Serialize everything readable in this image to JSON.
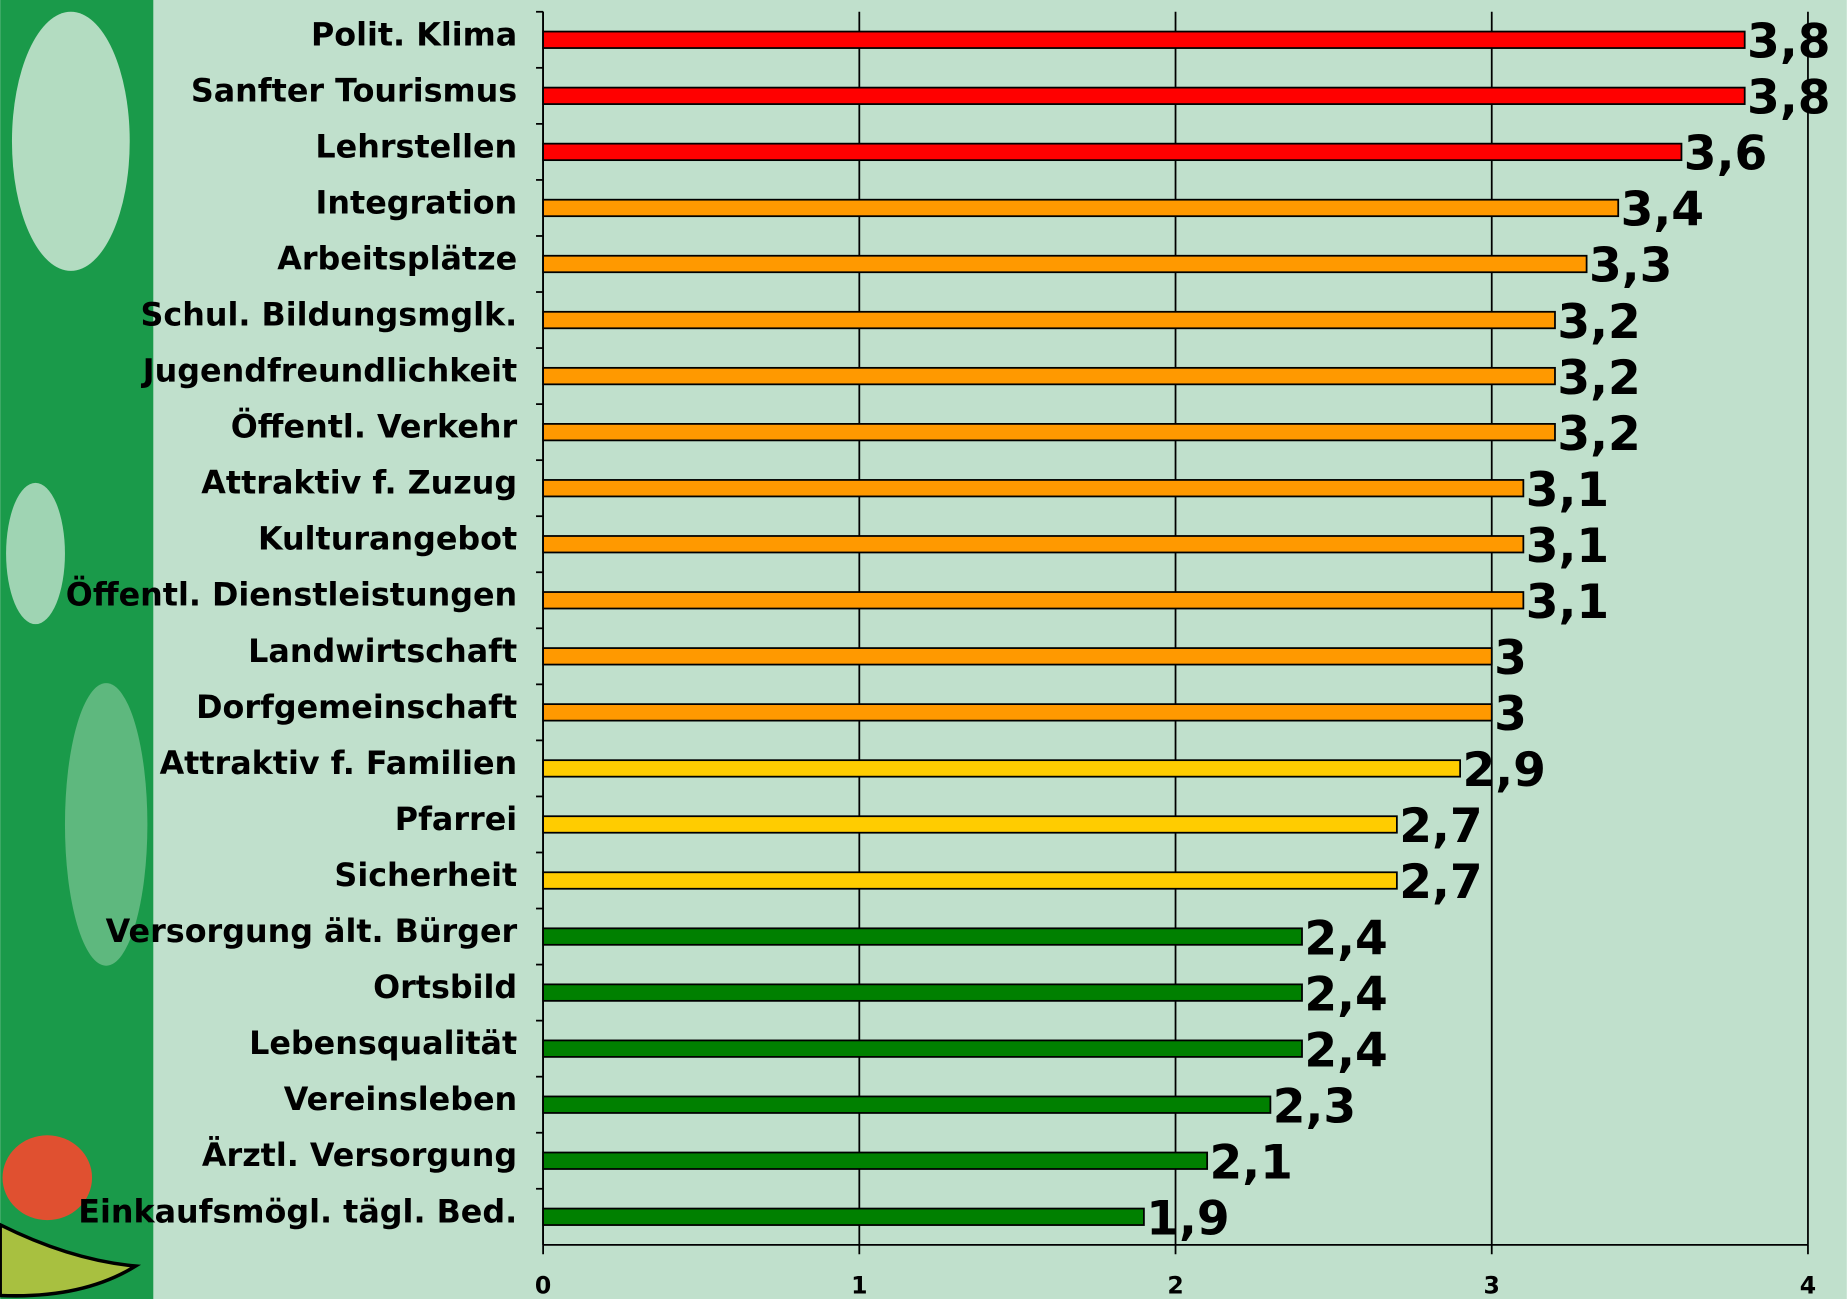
{
  "chart_data": {
    "type": "bar",
    "orientation": "horizontal",
    "categories": [
      "Polit. Klima",
      "Sanfter Tourismus",
      "Lehrstellen",
      "Integration",
      "Arbeitsplätze",
      "Schul. Bildungsmglk.",
      "Jugendfreundlichkeit",
      "Öffentl. Verkehr",
      "Attraktiv f. Zuzug",
      "Kulturangebot",
      "Öffentl. Dienstleistungen",
      "Landwirtschaft",
      "Dorfgemeinschaft",
      "Attraktiv f. Familien",
      "Pfarrei",
      "Sicherheit",
      "Versorgung ält. Bürger",
      "Ortsbild",
      "Lebensqualität",
      "Vereinsleben",
      "Ärztl. Versorgung",
      "Einkaufsmögl. tägl. Bed."
    ],
    "values": [
      3.8,
      3.8,
      3.6,
      3.4,
      3.3,
      3.2,
      3.2,
      3.2,
      3.1,
      3.1,
      3.1,
      3,
      3,
      2.9,
      2.7,
      2.7,
      2.4,
      2.4,
      2.4,
      2.3,
      2.1,
      1.9
    ],
    "value_labels": [
      "3,8",
      "3,8",
      "3,6",
      "3,4",
      "3,3",
      "3,2",
      "3,2",
      "3,2",
      "3,1",
      "3,1",
      "3,1",
      "3",
      "3",
      "2,9",
      "2,7",
      "2,7",
      "2,4",
      "2,4",
      "2,4",
      "2,3",
      "2,1",
      "1,9"
    ],
    "colors": [
      "#ff0000",
      "#ff0000",
      "#ff0000",
      "#ff9900",
      "#ff9900",
      "#ff9900",
      "#ff9900",
      "#ff9900",
      "#ff9900",
      "#ff9900",
      "#ff9900",
      "#ff9900",
      "#ff9900",
      "#ffcc00",
      "#ffcc00",
      "#ffcc00",
      "#008000",
      "#008000",
      "#008000",
      "#008000",
      "#008000",
      "#008000"
    ],
    "xlim": [
      0,
      4
    ],
    "xticks": [
      0,
      1,
      2,
      3,
      4
    ],
    "grid": true
  }
}
